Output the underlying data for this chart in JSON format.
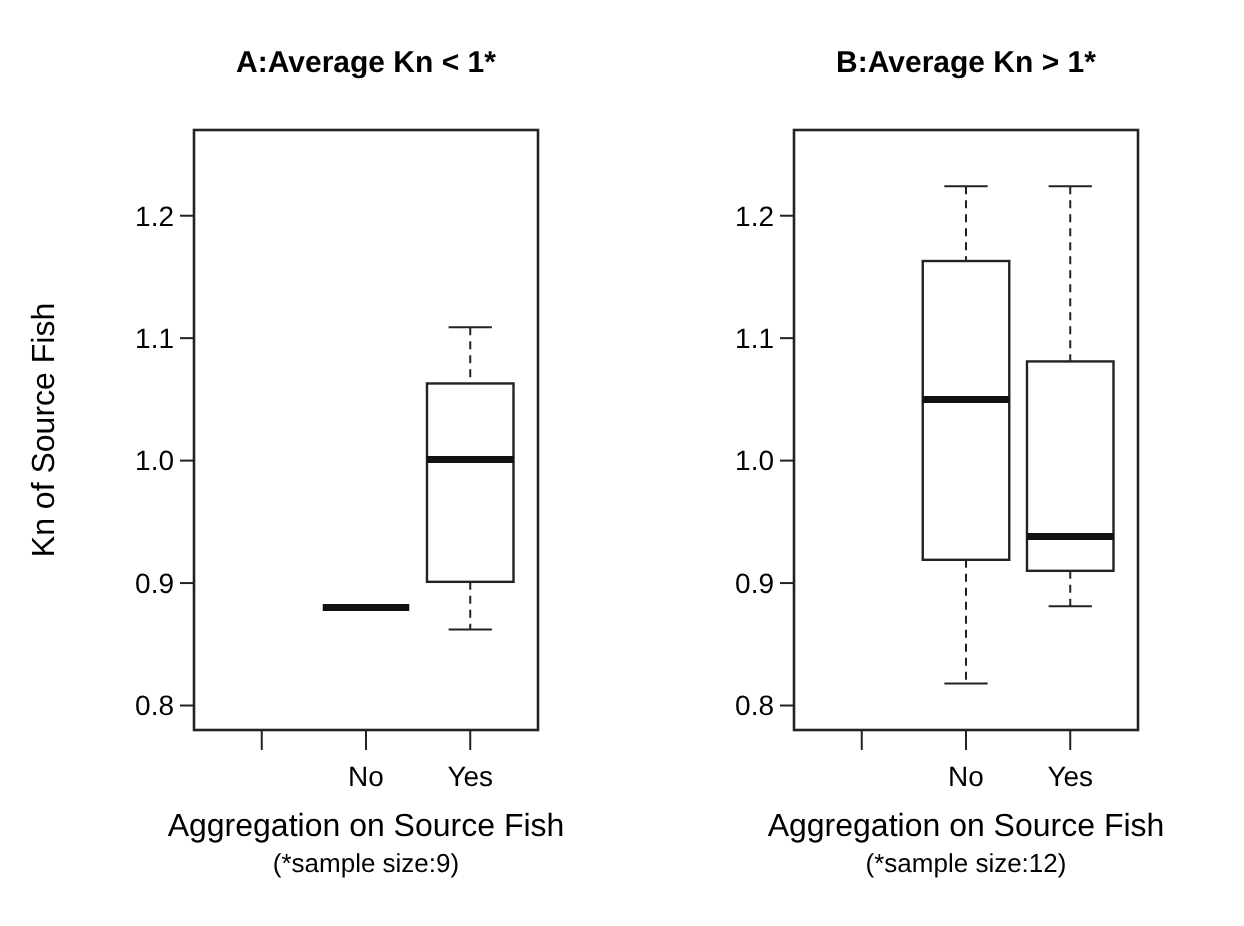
{
  "chart_data": [
    {
      "type": "box",
      "title": "A:Average Kn < 1*",
      "xlabel": "Aggregation on Source Fish",
      "ylabel": "Kn of Source Fish",
      "annotations": [
        "(*sample size:9)"
      ],
      "categories": [
        null,
        "No",
        "Yes"
      ],
      "boxes": [
        null,
        {
          "low": 0.88,
          "q1": 0.88,
          "median": 0.88,
          "q3": 0.88,
          "high": 0.88
        },
        {
          "low": 0.862,
          "q1": 0.901,
          "median": 1.001,
          "q3": 1.063,
          "high": 1.109
        }
      ],
      "ylim": [
        0.78,
        1.27
      ],
      "yticks": [
        {
          "value": 0.8,
          "label": "0.8"
        },
        {
          "value": 0.9,
          "label": "0.9"
        },
        {
          "value": 1.0,
          "label": "1.0"
        },
        {
          "value": 1.1,
          "label": "1.1"
        },
        {
          "value": 1.2,
          "label": "1.2"
        }
      ]
    },
    {
      "type": "box",
      "title": "B:Average Kn > 1*",
      "xlabel": "Aggregation on Source Fish",
      "annotations": [
        "(*sample size:12)"
      ],
      "categories": [
        null,
        "No",
        "Yes"
      ],
      "boxes": [
        null,
        {
          "low": 0.818,
          "q1": 0.919,
          "median": 1.05,
          "q3": 1.163,
          "high": 1.224
        },
        {
          "low": 0.881,
          "q1": 0.91,
          "median": 0.938,
          "q3": 1.081,
          "high": 1.224
        }
      ],
      "ylim": [
        0.78,
        1.27
      ],
      "yticks": [
        {
          "value": 0.8,
          "label": "0.8"
        },
        {
          "value": 0.9,
          "label": "0.9"
        },
        {
          "value": 1.0,
          "label": "1.0"
        },
        {
          "value": 1.1,
          "label": "1.1"
        },
        {
          "value": 1.2,
          "label": "1.2"
        }
      ]
    }
  ]
}
